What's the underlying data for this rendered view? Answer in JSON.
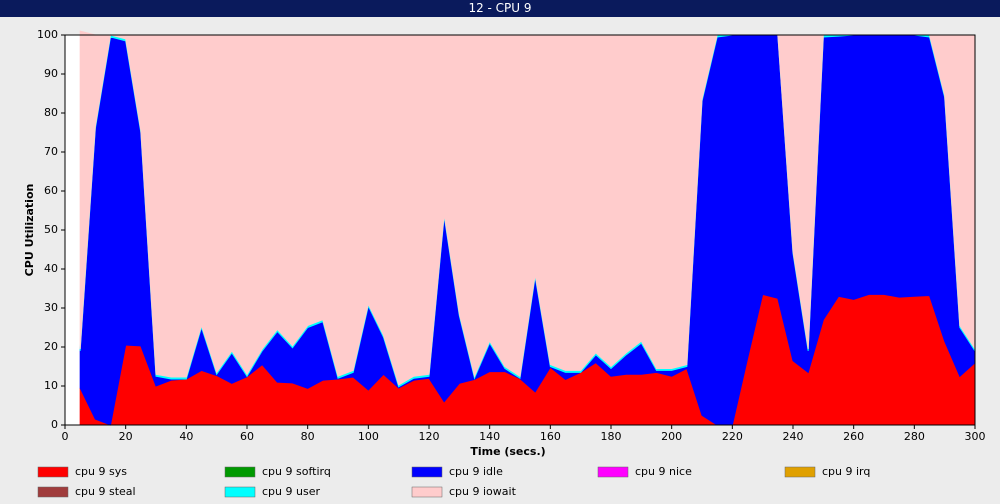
{
  "chart_data": {
    "type": "stacked_area",
    "title": "12 - CPU 9",
    "xlabel": "Time (secs.)",
    "ylabel": "CPU Utilization",
    "x": [
      5,
      10,
      15,
      20,
      25,
      30,
      35,
      40,
      45,
      50,
      55,
      60,
      65,
      70,
      75,
      80,
      85,
      90,
      95,
      100,
      105,
      110,
      115,
      120,
      125,
      130,
      135,
      140,
      145,
      150,
      155,
      160,
      165,
      170,
      175,
      180,
      185,
      190,
      195,
      200,
      205,
      210,
      215,
      220,
      225,
      230,
      235,
      240,
      245,
      250,
      255,
      260,
      265,
      270,
      275,
      280,
      285,
      290,
      295,
      300
    ],
    "series": [
      {
        "name": "cpu 9 sys",
        "color": "#ff0000",
        "values": [
          9.5,
          1.5,
          0,
          20.5,
          20.3,
          10,
          11.5,
          11.8,
          14,
          12.7,
          10.7,
          12.4,
          15.5,
          11,
          10.8,
          9.4,
          11.5,
          11.8,
          12.3,
          9,
          13,
          9.5,
          11.5,
          12,
          6,
          10.7,
          11.7,
          13.7,
          13.7,
          11.9,
          8.5,
          14.8,
          11.7,
          13.5,
          16,
          12.5,
          13,
          13,
          13.5,
          12.5,
          14.5,
          2.5,
          0,
          0,
          17,
          33.5,
          32.5,
          16.5,
          13.5,
          27,
          33,
          32.2,
          33.5,
          33.5,
          32.8,
          33,
          33.2,
          21.5,
          12.5,
          16
        ]
      },
      {
        "name": "cpu 9 softirq",
        "color": "#009900",
        "values": [
          0,
          0,
          0,
          0,
          0,
          0,
          0,
          0,
          0,
          0,
          0,
          0,
          0,
          0,
          0,
          0,
          0,
          0,
          0,
          0,
          0,
          0,
          0,
          0,
          0,
          0,
          0,
          0,
          0,
          0,
          0,
          0,
          0,
          0,
          0,
          0,
          0,
          0,
          0,
          0,
          0,
          0,
          0,
          0,
          0,
          0,
          0,
          0,
          0,
          0,
          0,
          0,
          0,
          0,
          0,
          0,
          0,
          0,
          0,
          0
        ]
      },
      {
        "name": "cpu 9 idle",
        "color": "#0000ff",
        "values": [
          9.5,
          74.5,
          99.5,
          78,
          54.7,
          2.5,
          0.3,
          0,
          11,
          0.3,
          7.8,
          0.1,
          3.5,
          13,
          9,
          15.6,
          15,
          0.2,
          1.2,
          21.5,
          9.5,
          0.3,
          0.5,
          0.5,
          47.5,
          17.3,
          0.3,
          7.3,
          0.8,
          0.1,
          29.5,
          0.2,
          1.8,
          0,
          2,
          2,
          5,
          8,
          0.5,
          1.5,
          0.5,
          80.5,
          99.5,
          100,
          83,
          66.5,
          67.5,
          27.5,
          5.5,
          72.5,
          66.7,
          67.8,
          66.5,
          66.5,
          67.2,
          67,
          66.3,
          62.5,
          12.5,
          3
        ]
      },
      {
        "name": "cpu 9 nice",
        "color": "#ff00ff",
        "values": [
          0,
          0,
          0,
          0,
          0,
          0,
          0,
          0,
          0,
          0,
          0,
          0,
          0,
          0,
          0,
          0,
          0,
          0,
          0,
          0,
          0,
          0,
          0,
          0,
          0,
          0,
          0,
          0,
          0,
          0,
          0,
          0,
          0,
          0,
          0,
          0,
          0,
          0,
          0,
          0,
          0,
          0,
          0,
          0,
          0,
          0,
          0,
          0,
          0,
          0,
          0,
          0,
          0,
          0,
          0,
          0,
          0,
          0,
          0,
          0
        ]
      },
      {
        "name": "cpu 9 irq",
        "color": "#e0a000",
        "values": [
          0,
          0,
          0,
          0,
          0,
          0,
          0,
          0,
          0,
          0,
          0,
          0,
          0,
          0,
          0,
          0,
          0,
          0,
          0,
          0,
          0,
          0,
          0,
          0,
          0,
          0,
          0,
          0,
          0,
          0,
          0,
          0,
          0,
          0,
          0,
          0,
          0,
          0,
          0,
          0,
          0,
          0,
          0,
          0,
          0,
          0,
          0,
          0,
          0,
          0,
          0,
          0,
          0,
          0,
          0,
          0,
          0,
          0,
          0,
          0
        ]
      },
      {
        "name": "cpu 9 steal",
        "color": "#a03c3c",
        "values": [
          0,
          0,
          0,
          0,
          0,
          0,
          0,
          0,
          0,
          0,
          0,
          0,
          0,
          0,
          0,
          0,
          0,
          0,
          0,
          0,
          0,
          0,
          0,
          0,
          0,
          0,
          0,
          0,
          0,
          0,
          0,
          0,
          0,
          0,
          0,
          0,
          0,
          0,
          0,
          0,
          0,
          0,
          0,
          0,
          0,
          0,
          0,
          0,
          0,
          0,
          0,
          0,
          0,
          0,
          0,
          0,
          0,
          0,
          0,
          0
        ]
      },
      {
        "name": "cpu 9 user",
        "color": "#00ffff",
        "values": [
          0.5,
          0.5,
          0.5,
          0.5,
          0.5,
          0.5,
          0.5,
          0.5,
          0.5,
          0.5,
          0.5,
          0.5,
          0.5,
          0.5,
          0.5,
          0.5,
          0.5,
          0.5,
          0.5,
          0.5,
          0.5,
          0.5,
          0.5,
          0.5,
          0.5,
          0.5,
          0.5,
          0.5,
          0.5,
          0.5,
          0.5,
          0.5,
          0.5,
          0.5,
          0.5,
          0.5,
          0.5,
          0.5,
          0.5,
          0.5,
          0.5,
          0.5,
          0.5,
          0,
          0,
          0,
          0,
          0.5,
          0.5,
          0.5,
          0.3,
          0,
          0,
          0,
          0,
          0,
          0.5,
          0.5,
          0.5,
          0.5
        ]
      },
      {
        "name": "cpu 9 iowait",
        "color": "#ffcccc",
        "values": [
          81.5,
          23.5,
          0,
          1,
          24.5,
          87,
          87.7,
          87.7,
          74.5,
          86.5,
          81,
          87,
          80.5,
          75.5,
          79.7,
          74.5,
          73,
          87.5,
          86,
          69,
          77,
          89.7,
          87.5,
          87,
          46,
          71.5,
          87.5,
          78.5,
          85,
          87.5,
          61.5,
          84.5,
          86,
          86,
          81.5,
          85,
          81.5,
          78.5,
          85.5,
          85.5,
          84.5,
          16.5,
          0,
          0,
          0,
          0,
          0,
          55.5,
          80.5,
          0,
          0,
          0,
          0,
          0,
          0,
          0,
          0,
          15.5,
          74.5,
          80.5
        ]
      }
    ],
    "xlim": [
      0,
      300
    ],
    "xticks": [
      0,
      20,
      40,
      60,
      80,
      100,
      120,
      140,
      160,
      180,
      200,
      220,
      240,
      260,
      280,
      300
    ],
    "ylim": [
      0,
      100
    ],
    "yticks": [
      0,
      10,
      20,
      30,
      40,
      50,
      60,
      70,
      80,
      90,
      100
    ],
    "grid": false
  }
}
